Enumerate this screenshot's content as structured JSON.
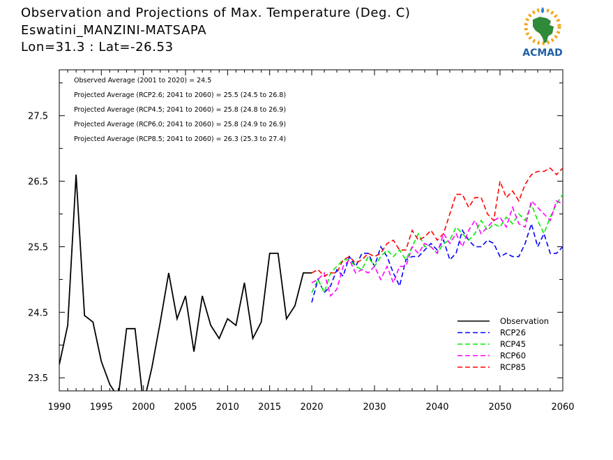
{
  "header": {
    "title": "Observation and Projections of Max. Temperature (Deg. C)",
    "station": "Eswatini_MANZINI-MATSAPA",
    "coords": "Lon=31.3 : Lat=-26.53"
  },
  "logo": {
    "text": "ACMAD",
    "icon": "africa-map-logo"
  },
  "annotations": [
    "Observed Average (2001 to 2020) = 24.5",
    "Projected Average (RCP2.6; 2041 to 2060) = 25.5 (24.5 to 26.8)",
    "Projected Average (RCP4.5; 2041 to 2060) = 25.8 (24.8 to 26.9)",
    "Projected Average (RCP6.0; 2041 to 2060) = 25.8 (24.9 to 26.9)",
    "Projected Average (RCP8.5; 2041 to 2060) = 26.3 (25.3 to 27.4)"
  ],
  "chart_data": {
    "type": "line",
    "title": "Observation and Projections of Max. Temperature (Deg. C)",
    "xlabel": "",
    "ylabel": "",
    "xlim": [
      1990,
      2060
    ],
    "ylim": [
      23.3,
      28.2
    ],
    "y_ticks": [
      23.5,
      24.5,
      25.5,
      26.5,
      27.5
    ],
    "x_tick_labels": [
      "1990",
      "1995",
      "2000",
      "2005",
      "2010",
      "2015",
      "2020",
      "2030",
      "2040",
      "2050",
      "2060"
    ],
    "x_tick_values": [
      1990,
      1995,
      2000,
      2005,
      2010,
      2015,
      2020,
      2030,
      2040,
      2050,
      2060
    ],
    "legend_placement": "bottom-right",
    "series": [
      {
        "name": "Observation",
        "color": "#000000",
        "dashed": false,
        "x": [
          1990,
          1991,
          1992,
          1993,
          1994,
          1995,
          1996,
          1997,
          1998,
          1999,
          2000,
          2001,
          2002,
          2003,
          2004,
          2005,
          2006,
          2007,
          2008,
          2009,
          2010,
          2011,
          2012,
          2013,
          2014,
          2015,
          2016,
          2017,
          2018,
          2019,
          2020
        ],
        "y": [
          23.7,
          24.3,
          26.6,
          24.45,
          24.35,
          23.75,
          23.4,
          23.2,
          24.25,
          24.25,
          23.1,
          23.65,
          24.35,
          25.1,
          24.4,
          24.75,
          23.9,
          24.75,
          24.3,
          24.1,
          24.4,
          24.3,
          24.95,
          24.1,
          24.35,
          25.4,
          25.4,
          24.4,
          24.6,
          25.1,
          25.1
        ]
      },
      {
        "name": "RCP26",
        "color": "#0000ff",
        "dashed": true,
        "x": [
          2020,
          2021,
          2022,
          2023,
          2024,
          2025,
          2026,
          2027,
          2028,
          2029,
          2030,
          2031,
          2032,
          2033,
          2034,
          2035,
          2036,
          2037,
          2038,
          2039,
          2040,
          2041,
          2042,
          2043,
          2044,
          2045,
          2046,
          2047,
          2048,
          2049,
          2050,
          2051,
          2052,
          2053,
          2054,
          2055,
          2056,
          2057,
          2058,
          2059,
          2060
        ],
        "y": [
          24.65,
          25.0,
          24.8,
          24.9,
          25.15,
          25.05,
          25.35,
          25.2,
          25.4,
          25.4,
          25.2,
          25.5,
          25.35,
          25.1,
          24.9,
          25.3,
          25.35,
          25.35,
          25.45,
          25.55,
          25.45,
          25.6,
          25.3,
          25.4,
          25.75,
          25.6,
          25.5,
          25.5,
          25.6,
          25.55,
          25.35,
          25.4,
          25.35,
          25.35,
          25.55,
          25.85,
          25.5,
          25.7,
          25.4,
          25.4,
          25.5
        ]
      },
      {
        "name": "RCP45",
        "color": "#00ee00",
        "dashed": true,
        "x": [
          2020,
          2021,
          2022,
          2023,
          2024,
          2025,
          2026,
          2027,
          2028,
          2029,
          2030,
          2031,
          2032,
          2033,
          2034,
          2035,
          2036,
          2037,
          2038,
          2039,
          2040,
          2041,
          2042,
          2043,
          2044,
          2045,
          2046,
          2047,
          2048,
          2049,
          2050,
          2051,
          2052,
          2053,
          2054,
          2055,
          2056,
          2057,
          2058,
          2059,
          2060
        ],
        "y": [
          24.8,
          25.0,
          24.8,
          25.1,
          25.2,
          25.3,
          25.3,
          25.2,
          25.15,
          25.35,
          25.2,
          25.35,
          25.45,
          25.35,
          25.45,
          25.3,
          25.5,
          25.7,
          25.5,
          25.5,
          25.4,
          25.55,
          25.6,
          25.8,
          25.7,
          25.6,
          25.7,
          25.9,
          25.75,
          25.85,
          25.8,
          25.95,
          25.85,
          26.0,
          25.9,
          26.15,
          25.9,
          25.7,
          25.95,
          26.15,
          26.3
        ]
      },
      {
        "name": "RCP60",
        "color": "#ff00ff",
        "dashed": true,
        "x": [
          2020,
          2021,
          2022,
          2023,
          2024,
          2025,
          2026,
          2027,
          2028,
          2029,
          2030,
          2031,
          2032,
          2033,
          2034,
          2035,
          2036,
          2037,
          2038,
          2039,
          2040,
          2041,
          2042,
          2043,
          2044,
          2045,
          2046,
          2047,
          2048,
          2049,
          2050,
          2051,
          2052,
          2053,
          2054,
          2055,
          2056,
          2057,
          2058,
          2059,
          2060
        ],
        "y": [
          24.95,
          25.0,
          25.1,
          24.75,
          24.85,
          25.2,
          25.3,
          25.1,
          25.15,
          25.1,
          25.2,
          25.0,
          25.2,
          24.95,
          25.2,
          25.2,
          25.5,
          25.4,
          25.55,
          25.5,
          25.4,
          25.7,
          25.55,
          25.7,
          25.5,
          25.75,
          25.9,
          25.7,
          25.8,
          25.9,
          25.95,
          25.8,
          26.1,
          25.85,
          25.8,
          26.2,
          26.1,
          26.0,
          25.9,
          26.2,
          26.15
        ]
      },
      {
        "name": "RCP85",
        "color": "#ff0000",
        "dashed": true,
        "x": [
          2020,
          2021,
          2022,
          2023,
          2024,
          2025,
          2026,
          2027,
          2028,
          2029,
          2030,
          2031,
          2032,
          2033,
          2034,
          2035,
          2036,
          2037,
          2038,
          2039,
          2040,
          2041,
          2042,
          2043,
          2044,
          2045,
          2046,
          2047,
          2048,
          2049,
          2050,
          2051,
          2052,
          2053,
          2054,
          2055,
          2056,
          2057,
          2058,
          2059,
          2060
        ],
        "y": [
          25.1,
          25.15,
          25.05,
          25.1,
          25.1,
          25.3,
          25.35,
          25.25,
          25.3,
          25.4,
          25.35,
          25.4,
          25.55,
          25.6,
          25.45,
          25.45,
          25.75,
          25.6,
          25.65,
          25.75,
          25.6,
          25.7,
          26.0,
          26.3,
          26.3,
          26.1,
          26.25,
          26.25,
          26.0,
          25.9,
          26.5,
          26.25,
          26.35,
          26.2,
          26.45,
          26.6,
          26.65,
          26.65,
          26.7,
          26.6,
          26.7
        ]
      }
    ]
  }
}
